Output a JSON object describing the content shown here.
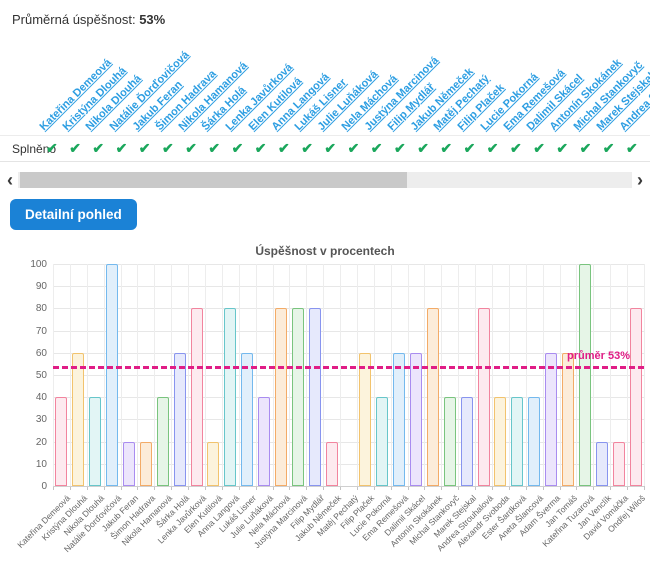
{
  "header": {
    "average_label": "Průměrná úspěšnost:",
    "average_value": "53%"
  },
  "table": {
    "row_label": "Splněno",
    "check_glyph": "✔",
    "visible_count": 26
  },
  "scrollbar": {
    "left_arrow": "‹",
    "right_arrow": "›"
  },
  "detail_button_label": "Detailní pohled",
  "colors": {
    "link": "#2d9ee2",
    "button": "#1b82d6",
    "check": "#1ba75c"
  },
  "chart_data": {
    "type": "bar",
    "title": "Úspěšnost v procentech",
    "categories": [
      "Kateřina Demeová",
      "Kristýna Dlouhá",
      "Nikola Dlouhá",
      "Natálie Ďorďovičová",
      "Jakub Feran",
      "Šimon Hadrava",
      "Nikola Hamanová",
      "Šárka Holá",
      "Lenka Javůrková",
      "Elen Kutilová",
      "Anna Langová",
      "Lukáš Lisner",
      "Julie Luňáková",
      "Nela Máchová",
      "Justýna Marcinová",
      "Filip Mydlář",
      "Jakub Němeček",
      "Matěj Pechatý",
      "Filip Plaček",
      "Lucie Pokorná",
      "Ema Remešová",
      "Dalimil Skácel",
      "Antonín Skokánek",
      "Michal Stankovyč",
      "Marek Stejskal",
      "Andrea Strouhalová",
      "Alexandr Svoboda",
      "Ester Šardková",
      "Aneta Šlancová",
      "Adam Šverma",
      "Jan Tomáš",
      "Kateřina Tuzarová",
      "Jan Venclík",
      "David Vomáčka",
      "Ondřej Wiloš"
    ],
    "values": [
      40,
      60,
      40,
      100,
      20,
      20,
      40,
      60,
      80,
      20,
      80,
      60,
      40,
      80,
      80,
      80,
      20,
      0,
      60,
      40,
      60,
      60,
      80,
      40,
      40,
      80,
      40,
      40,
      40,
      60,
      60,
      100,
      20,
      20,
      80
    ],
    "bar_colors": [
      "pink",
      "yellow",
      "teal",
      "blue",
      "purple",
      "orange",
      "green",
      "indigo",
      "pink",
      "yellow",
      "teal",
      "blue",
      "purple",
      "orange",
      "green",
      "indigo",
      "pink",
      "yellow",
      "yellow",
      "teal",
      "blue",
      "purple",
      "orange",
      "green",
      "indigo",
      "pink",
      "yellow",
      "teal",
      "blue",
      "purple",
      "orange",
      "green",
      "indigo",
      "pink",
      "pink"
    ],
    "palette": {
      "pink": {
        "border": "#f2849e",
        "fill": "#fdeaef"
      },
      "yellow": {
        "border": "#f2c36d",
        "fill": "#fcf3dc"
      },
      "teal": {
        "border": "#67c6ca",
        "fill": "#e2f5f5"
      },
      "blue": {
        "border": "#74b9ee",
        "fill": "#e1effb"
      },
      "purple": {
        "border": "#a98cf0",
        "fill": "#ece5fc"
      },
      "orange": {
        "border": "#f3ab67",
        "fill": "#fcecd9"
      },
      "green": {
        "border": "#79c47e",
        "fill": "#e6f5e7"
      },
      "indigo": {
        "border": "#8894ef",
        "fill": "#e6e9fc"
      }
    },
    "ylim": [
      0,
      100
    ],
    "yticks": [
      0,
      10,
      20,
      30,
      40,
      50,
      60,
      70,
      80,
      90,
      100
    ],
    "grid": true,
    "legend": "none",
    "average_line": {
      "value": 53,
      "label": "průměr 53%",
      "color": "#e01d86"
    }
  }
}
